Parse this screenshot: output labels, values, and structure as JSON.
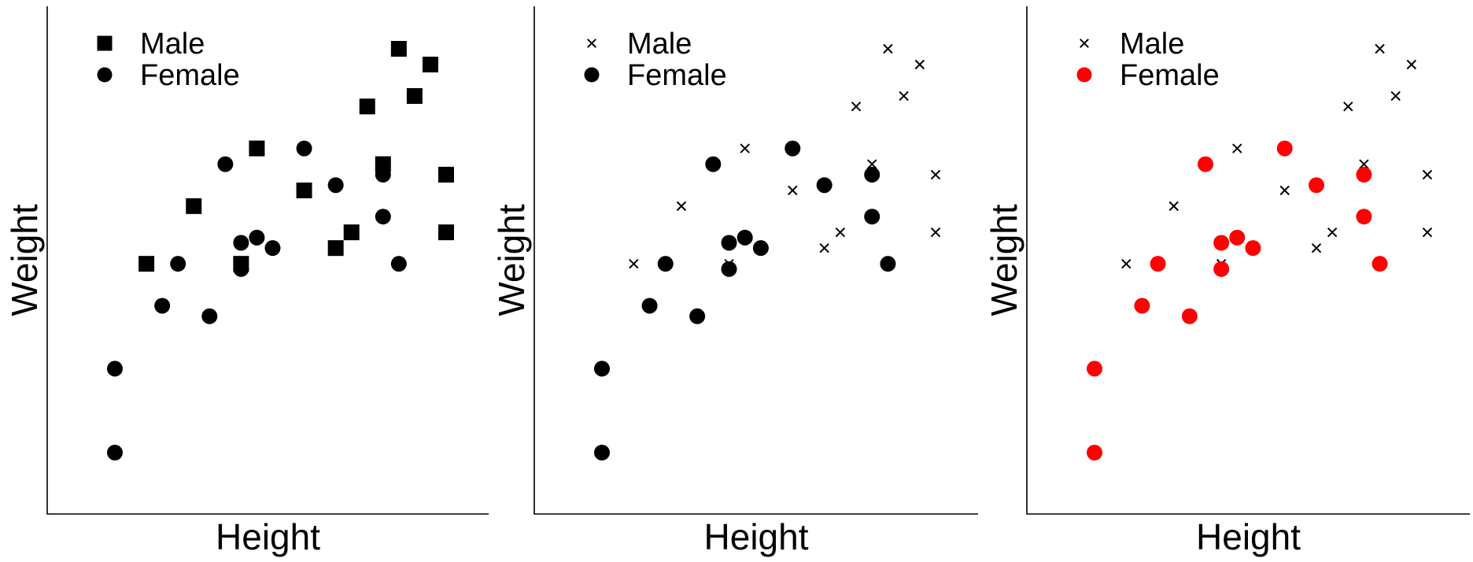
{
  "chart_data": [
    {
      "type": "scatter",
      "xlabel": "Height",
      "ylabel": "Weight",
      "grid": false,
      "legend": "top-left",
      "series": [
        {
          "name": "Male",
          "marker": "square",
          "color": "#000000",
          "points": [
            [
              5,
              63
            ],
            [
              12,
              85
            ],
            [
              8,
              74
            ],
            [
              11,
              63
            ],
            [
              15,
              77
            ],
            [
              18,
              69
            ],
            [
              17,
              66
            ],
            [
              20,
              82
            ],
            [
              19,
              93
            ],
            [
              21,
              104
            ],
            [
              22,
              95
            ],
            [
              23,
              101
            ],
            [
              24,
              80
            ],
            [
              24,
              69
            ]
          ]
        },
        {
          "name": "Female",
          "marker": "circle",
          "color": "#000000",
          "points": [
            [
              3,
              43
            ],
            [
              3,
              27
            ],
            [
              6,
              55
            ],
            [
              7,
              63
            ],
            [
              9,
              53
            ],
            [
              10,
              82
            ],
            [
              11,
              62
            ],
            [
              11,
              67
            ],
            [
              12,
              68
            ],
            [
              13,
              66
            ],
            [
              15,
              85
            ],
            [
              17,
              78
            ],
            [
              20,
              80
            ],
            [
              20,
              72
            ],
            [
              21,
              63
            ]
          ]
        }
      ]
    },
    {
      "type": "scatter",
      "xlabel": "Height",
      "ylabel": "Weight",
      "grid": false,
      "legend": "top-left",
      "series": [
        {
          "name": "Male",
          "marker": "x",
          "color": "#000000",
          "points": [
            [
              5,
              63
            ],
            [
              12,
              85
            ],
            [
              8,
              74
            ],
            [
              11,
              63
            ],
            [
              15,
              77
            ],
            [
              18,
              69
            ],
            [
              17,
              66
            ],
            [
              20,
              82
            ],
            [
              19,
              93
            ],
            [
              21,
              104
            ],
            [
              22,
              95
            ],
            [
              23,
              101
            ],
            [
              24,
              80
            ],
            [
              24,
              69
            ]
          ]
        },
        {
          "name": "Female",
          "marker": "circle",
          "color": "#000000",
          "points": [
            [
              3,
              43
            ],
            [
              3,
              27
            ],
            [
              6,
              55
            ],
            [
              7,
              63
            ],
            [
              9,
              53
            ],
            [
              10,
              82
            ],
            [
              11,
              62
            ],
            [
              11,
              67
            ],
            [
              12,
              68
            ],
            [
              13,
              66
            ],
            [
              15,
              85
            ],
            [
              17,
              78
            ],
            [
              20,
              80
            ],
            [
              20,
              72
            ],
            [
              21,
              63
            ]
          ]
        }
      ]
    },
    {
      "type": "scatter",
      "xlabel": "Height",
      "ylabel": "Weight",
      "grid": false,
      "legend": "top-left",
      "series": [
        {
          "name": "Male",
          "marker": "x",
          "color": "#000000",
          "points": [
            [
              5,
              63
            ],
            [
              12,
              85
            ],
            [
              8,
              74
            ],
            [
              11,
              63
            ],
            [
              15,
              77
            ],
            [
              18,
              69
            ],
            [
              17,
              66
            ],
            [
              20,
              82
            ],
            [
              19,
              93
            ],
            [
              21,
              104
            ],
            [
              22,
              95
            ],
            [
              23,
              101
            ],
            [
              24,
              80
            ],
            [
              24,
              69
            ]
          ]
        },
        {
          "name": "Female",
          "marker": "circle",
          "color": "#ff0000",
          "points": [
            [
              3,
              43
            ],
            [
              3,
              27
            ],
            [
              6,
              55
            ],
            [
              7,
              63
            ],
            [
              9,
              53
            ],
            [
              10,
              82
            ],
            [
              11,
              62
            ],
            [
              11,
              67
            ],
            [
              12,
              68
            ],
            [
              13,
              66
            ],
            [
              15,
              85
            ],
            [
              17,
              78
            ],
            [
              20,
              80
            ],
            [
              20,
              72
            ],
            [
              21,
              63
            ]
          ]
        }
      ]
    }
  ]
}
